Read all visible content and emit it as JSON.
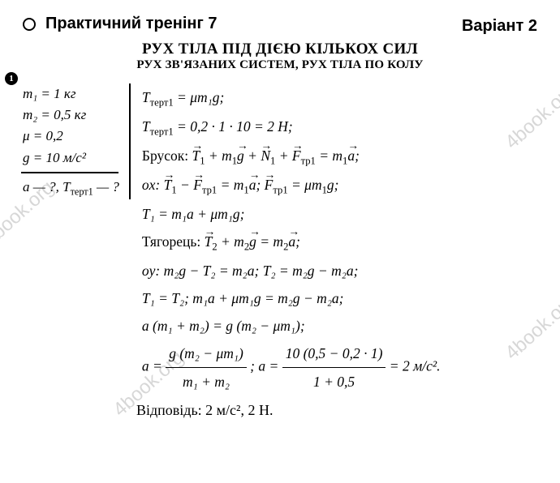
{
  "header": {
    "training": "Практичний тренінг 7",
    "variant": "Варіант 2"
  },
  "title": {
    "main": "РУХ ТІЛА ПІД ДІЄЮ КІЛЬКОХ СИЛ",
    "sub": "РУХ ЗВ'ЯЗАНИХ СИСТЕМ, РУХ ТІЛА ПО КОЛУ"
  },
  "problem_number": "1",
  "given": {
    "m1": "m₁ = 1 кг",
    "m2": "m₂ = 0,5 кг",
    "mu": "μ = 0,2",
    "g": "g = 10 м/с²",
    "find": "a — ?, Tтерт1 — ?"
  },
  "solution": {
    "l1a": "T",
    "l1b": " = μm₁g;",
    "l2a": "T",
    "l2b": " = 0,2 · 1 · 10 = 2 Н;",
    "l3_pre": "Брусок: ",
    "l4_pre": "ox: ",
    "l5": "T₁ = m₁a + μm₁g;",
    "l6_pre": "Тягорець: ",
    "l7": "oy: m₂g − T₂ = m₂a; T₂ = m₂g − m₂a;",
    "l8": "T₁ = T₂; m₁a + μm₁g = m₂g − m₂a;",
    "l9": "a (m₁ + m₂) = g (m₂ − μm₁);",
    "final_num1": "g (m₂ − μm₁)",
    "final_den1": "m₁ + m₂",
    "final_num2": "10 (0,5 − 0,2 · 1)",
    "final_den2": "1 + 0,5",
    "final_result": " = 2 м/с²."
  },
  "answer": "Відповідь: 2 м/с², 2 Н.",
  "watermark": "4book.org",
  "colors": {
    "background": "#ffffff",
    "text": "#000000",
    "watermark": "#b8b8b8"
  }
}
